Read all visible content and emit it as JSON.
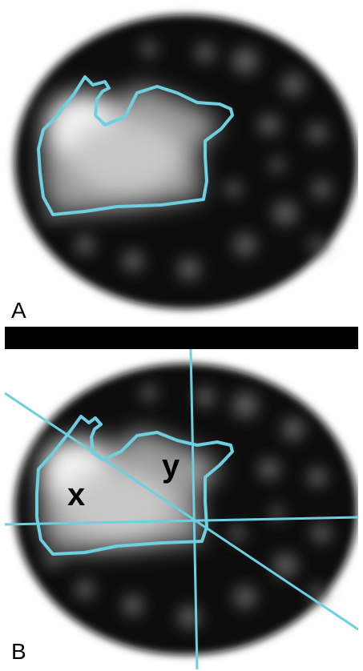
{
  "figure": {
    "panel_a": {
      "label": "A"
    },
    "panel_b": {
      "label": "B",
      "regions": {
        "x": "x",
        "y": "y"
      }
    },
    "colors": {
      "contour": "#6ecfe0",
      "background": "#ffffff",
      "disk": "#0d0d0d",
      "divider": "#000000"
    }
  }
}
